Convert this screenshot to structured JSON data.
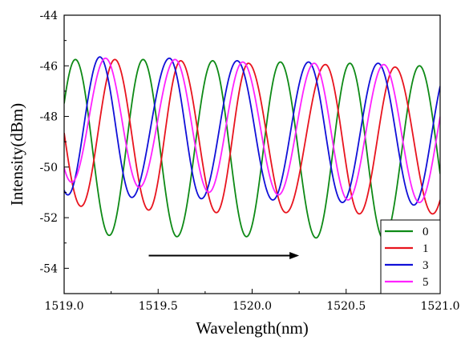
{
  "chart_data": {
    "type": "line",
    "title": "",
    "xlabel": "Wavelength(nm)",
    "ylabel": "Intensity(dBm)",
    "xlim": [
      1519.0,
      1521.0
    ],
    "ylim": [
      -55,
      -44
    ],
    "x_ticks": [
      1519.0,
      1519.5,
      1520.0,
      1520.5,
      1521.0
    ],
    "x_tick_labels": [
      "1519.0",
      "1519.5",
      "1520.0",
      "1520.5",
      "1521.0"
    ],
    "y_ticks": [
      -54,
      -52,
      -50,
      -48,
      -46,
      -44
    ],
    "y_tick_labels": [
      "-54",
      "-52",
      "-50",
      "-48",
      "-46",
      "-44"
    ],
    "grid": false,
    "legend_position": "bottom-right",
    "series": [
      {
        "name": "0",
        "color": "#0e8a16",
        "peaks": [
          [
            1519.06,
            -45.75
          ],
          [
            1519.42,
            -45.75
          ],
          [
            1519.79,
            -45.8
          ],
          [
            1520.15,
            -45.85
          ],
          [
            1520.52,
            -45.9
          ],
          [
            1520.89,
            -46.0
          ]
        ],
        "troughs": [
          [
            1519.24,
            -52.7
          ],
          [
            1519.6,
            -52.75
          ],
          [
            1519.97,
            -52.75
          ],
          [
            1520.34,
            -52.8
          ],
          [
            1520.7,
            -52.85
          ]
        ]
      },
      {
        "name": "1",
        "color": "#e8141e",
        "peaks": [
          [
            1519.27,
            -45.75
          ],
          [
            1519.62,
            -45.8
          ],
          [
            1519.98,
            -45.9
          ],
          [
            1520.39,
            -45.95
          ],
          [
            1520.76,
            -46.05
          ]
        ],
        "troughs": [
          [
            1519.09,
            -51.55
          ],
          [
            1519.45,
            -51.7
          ],
          [
            1519.81,
            -51.8
          ],
          [
            1520.18,
            -51.8
          ],
          [
            1520.57,
            -51.85
          ],
          [
            1520.96,
            -51.85
          ]
        ]
      },
      {
        "name": "3",
        "color": "#1010d8",
        "peaks": [
          [
            1519.19,
            -45.65
          ],
          [
            1519.56,
            -45.7
          ],
          [
            1519.92,
            -45.8
          ],
          [
            1520.3,
            -45.85
          ],
          [
            1520.67,
            -45.9
          ]
        ],
        "troughs": [
          [
            1519.02,
            -51.1
          ],
          [
            1519.36,
            -51.2
          ],
          [
            1519.73,
            -51.25
          ],
          [
            1520.11,
            -51.3
          ],
          [
            1520.48,
            -51.4
          ],
          [
            1520.86,
            -51.5
          ]
        ]
      },
      {
        "name": "5",
        "color": "#ff22ff",
        "peaks": [
          [
            1519.22,
            -45.7
          ],
          [
            1519.59,
            -45.75
          ],
          [
            1519.95,
            -45.85
          ],
          [
            1520.33,
            -45.9
          ],
          [
            1520.7,
            -45.95
          ]
        ],
        "troughs": [
          [
            1519.04,
            -50.6
          ],
          [
            1519.4,
            -50.8
          ],
          [
            1519.77,
            -51.0
          ],
          [
            1520.14,
            -51.1
          ],
          [
            1520.51,
            -51.3
          ],
          [
            1520.89,
            -51.4
          ]
        ]
      }
    ],
    "annotation": {
      "type": "arrow",
      "from": [
        1519.45,
        -53.5
      ],
      "to": [
        1520.25,
        -53.5
      ]
    }
  }
}
